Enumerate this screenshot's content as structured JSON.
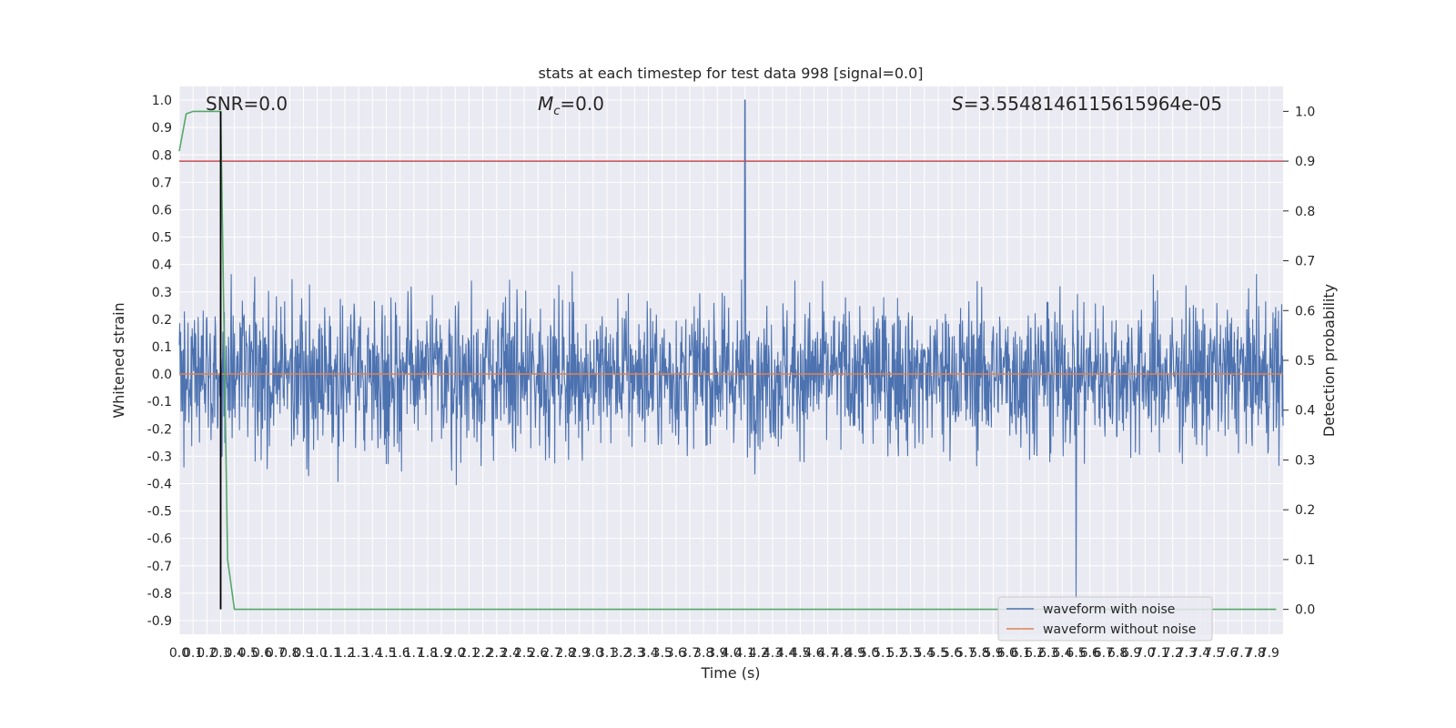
{
  "chart_data": {
    "type": "line",
    "title": "stats at each timestep for test data 998 [signal=0.0]",
    "xlabel": "Time (s)",
    "ylabel_left": "Whitened strain",
    "ylabel_right": "Detection probability",
    "xlim": [
      0.0,
      8.0
    ],
    "ylim_left": [
      -0.95,
      1.05
    ],
    "ylim_right": [
      -0.05,
      1.05
    ],
    "x_ticks": [
      "0.0",
      "0.1",
      "0.2",
      "0.3",
      "0.4",
      "0.5",
      "0.6",
      "0.7",
      "0.8",
      "0.9",
      "1.0",
      "1.1",
      "1.2",
      "1.3",
      "1.4",
      "1.5",
      "1.6",
      "1.7",
      "1.8",
      "1.9",
      "2.0",
      "2.1",
      "2.2",
      "2.3",
      "2.4",
      "2.5",
      "2.6",
      "2.7",
      "2.8",
      "2.9",
      "3.0",
      "3.1",
      "3.2",
      "3.3",
      "3.4",
      "3.5",
      "3.6",
      "3.7",
      "3.8",
      "3.9",
      "4.0",
      "4.1",
      "4.2",
      "4.3",
      "4.4",
      "4.5",
      "4.6",
      "4.7",
      "4.8",
      "4.9",
      "5.0",
      "5.1",
      "5.2",
      "5.3",
      "5.4",
      "5.5",
      "5.6",
      "5.7",
      "5.8",
      "5.9",
      "6.0",
      "6.1",
      "6.2",
      "6.3",
      "6.4",
      "6.5",
      "6.6",
      "6.7",
      "6.8",
      "6.9",
      "7.0",
      "7.1",
      "7.2",
      "7.3",
      "7.4",
      "7.5",
      "7.6",
      "7.7",
      "7.8",
      "7.9"
    ],
    "y_ticks_left": [
      "1.0",
      "0.9",
      "0.8",
      "0.7",
      "0.6",
      "0.5",
      "0.4",
      "0.3",
      "0.2",
      "0.1",
      "0.0",
      "-0.1",
      "-0.2",
      "-0.3",
      "-0.4",
      "-0.5",
      "-0.6",
      "-0.7",
      "-0.8",
      "-0.9"
    ],
    "y_ticks_right": [
      "1.0",
      "0.9",
      "0.8",
      "0.7",
      "0.6",
      "0.5",
      "0.4",
      "0.3",
      "0.2",
      "0.1",
      "0.0"
    ],
    "annotations": {
      "snr": "SNR=0.0",
      "mc_symbol": "M",
      "mc_sub": "c",
      "mc_value": "=0.0",
      "s_symbol": "S",
      "s_value": "=3.5548146115615964e-05"
    },
    "series": [
      {
        "name": "waveform with noise",
        "color": "#4c72b0",
        "axis": "left",
        "description_values": {
          "typical_range": [
            -0.45,
            0.45
          ],
          "peak_max": 1.0,
          "peak_max_x": 4.1,
          "peak_min": -0.82,
          "peak_min_x": 6.5
        }
      },
      {
        "name": "waveform without noise",
        "color": "#dd8452",
        "axis": "left",
        "constant_value": 0.0
      },
      {
        "name": "",
        "color": "#55a868",
        "axis": "right",
        "x": [
          0.0,
          0.05,
          0.1,
          0.15,
          0.2,
          0.25,
          0.3,
          0.35,
          0.4,
          0.43,
          7.95
        ],
        "y": [
          0.92,
          0.995,
          1.0,
          1.0,
          1.0,
          1.0,
          1.0,
          0.1,
          0.0,
          0.0,
          0.0
        ]
      }
    ],
    "threshold_line": {
      "color": "#c44e52",
      "axis": "right",
      "value": 0.9
    },
    "vertical_marker": {
      "color": "#000000",
      "x": 0.3,
      "y_range_right": [
        0.0,
        1.0
      ]
    },
    "grid": true,
    "legend_placement": "lower right"
  }
}
